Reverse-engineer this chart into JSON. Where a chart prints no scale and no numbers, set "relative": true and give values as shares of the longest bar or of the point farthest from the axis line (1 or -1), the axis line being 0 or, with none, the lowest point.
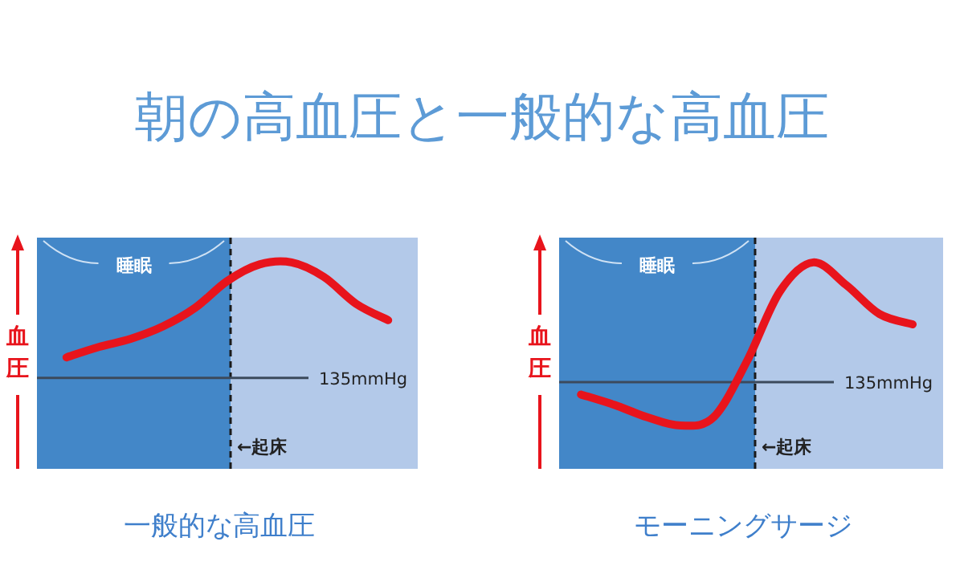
{
  "chart_data": [
    {
      "type": "line",
      "title": "一般的な高血圧",
      "subtitle": "朝の高血圧と一般的な高血圧",
      "ylabel": "血圧",
      "relative": true,
      "marker": "none",
      "line_style": "solid",
      "categories": [
        null,
        null,
        null,
        null,
        null,
        null,
        null,
        null,
        null,
        null,
        null
      ],
      "series": [
        {
          "color": "#e8141c",
          "values": [
            0.54,
            0.59,
            0.63,
            0.69,
            0.78,
            0.91,
            0.99,
            1,
            0.93,
            0.8,
            0.72
          ]
        }
      ],
      "ref_lines": [
        {
          "axis": "y",
          "value": 0.44,
          "label": "135mmHg",
          "color": "#3c4a5c",
          "line_style": "solid"
        }
      ],
      "annotations": [
        "睡眠",
        "←起床"
      ]
    },
    {
      "type": "line",
      "title": "モーニングサージ",
      "ylabel": "血圧",
      "relative": true,
      "marker": "none",
      "line_style": "solid",
      "categories": [
        null,
        null,
        null,
        null,
        null,
        null,
        null,
        null,
        null,
        null,
        null
      ],
      "series": [
        {
          "color": "#e8141c",
          "values": [
            0.36,
            0.31,
            0.25,
            0.21,
            0.25,
            0.52,
            0.86,
            1,
            0.89,
            0.75,
            0.7
          ]
        }
      ],
      "ref_lines": [
        {
          "axis": "y",
          "value": 0.42,
          "label": "135mmHg",
          "color": "#3c4a5c",
          "line_style": "solid"
        }
      ],
      "annotations": [
        "睡眠",
        "←起床"
      ]
    }
  ]
}
